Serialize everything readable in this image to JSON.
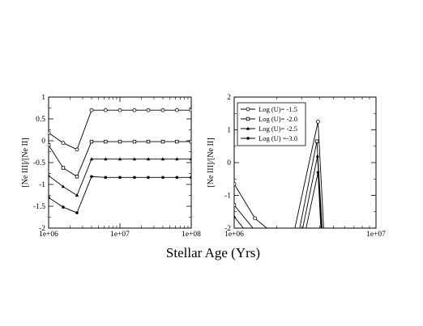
{
  "figure": {
    "xlabel": "Stellar Age (Yrs)"
  },
  "chart_data": [
    {
      "type": "line",
      "ylabel": "[Ne III]/[Ne II]",
      "xscale": "log",
      "xlim": [
        1000000,
        100000000
      ],
      "ylim": [
        -2,
        1
      ],
      "xticks": [
        1000000,
        10000000,
        100000000
      ],
      "xtick_labels": [
        "1e+06",
        "1e+07",
        "1e+08"
      ],
      "yticks": [
        -2,
        -1.5,
        -1,
        -0.5,
        0,
        0.5,
        1
      ],
      "ytick_labels": [
        "-2",
        "-1.5",
        "-1",
        "-0.5",
        "0",
        "0.5",
        "1"
      ],
      "x": [
        1000000,
        1600000,
        2500000,
        4000000,
        6300000,
        10000000,
        16000000,
        25000000,
        40000000,
        63000000,
        100000000
      ],
      "series": [
        {
          "marker": "circle-open",
          "values": [
            0.18,
            -0.05,
            -0.2,
            0.7,
            0.7,
            0.7,
            0.7,
            0.7,
            0.7,
            0.7,
            0.7
          ]
        },
        {
          "marker": "square-open",
          "values": [
            -0.1,
            -0.62,
            -0.82,
            -0.02,
            -0.02,
            -0.02,
            -0.02,
            -0.02,
            -0.02,
            -0.02,
            -0.02
          ]
        },
        {
          "marker": "triangle",
          "values": [
            -0.8,
            -1.05,
            -1.25,
            -0.42,
            -0.42,
            -0.42,
            -0.42,
            -0.42,
            -0.42,
            -0.42,
            -0.42
          ]
        },
        {
          "marker": "circle-filled",
          "values": [
            -1.3,
            -1.52,
            -1.65,
            -0.82,
            -0.84,
            -0.84,
            -0.84,
            -0.84,
            -0.84,
            -0.84,
            -0.84
          ]
        }
      ]
    },
    {
      "type": "line",
      "ylabel": "[Ne III]/[Ne II]",
      "xscale": "log",
      "xlim": [
        1000000,
        10000000
      ],
      "ylim": [
        -2,
        2
      ],
      "xticks": [
        1000000,
        10000000
      ],
      "xtick_labels": [
        "1e+06",
        "1e+07"
      ],
      "yticks": [
        -2,
        -1,
        0,
        1,
        2
      ],
      "ytick_labels": [
        "-2",
        "-1",
        "0",
        "1",
        "2"
      ],
      "legend_position": "top-left",
      "series": [
        {
          "name": "Log (U)= -1.5",
          "marker": "circle-open",
          "points": [
            [
              1000000,
              -0.65
            ],
            [
              1400000,
              -1.7
            ],
            [
              2500000,
              -2.6
            ],
            [
              3900000,
              1.25
            ],
            [
              4350000,
              -2.6
            ]
          ]
        },
        {
          "name": "Log (U)= -2.0",
          "marker": "square-open",
          "points": [
            [
              1000000,
              -1.3
            ],
            [
              2500000,
              -3.4
            ],
            [
              3830000,
              0.65
            ],
            [
              4250000,
              -2.6
            ]
          ]
        },
        {
          "name": "Log (U)= -2.5",
          "marker": "triangle",
          "points": [
            [
              1000000,
              -1.65
            ],
            [
              2500000,
              -3.8
            ],
            [
              3870000,
              0.2
            ],
            [
              4200000,
              -2.6
            ]
          ]
        },
        {
          "name": "Log (U) =-3.0",
          "marker": "circle-filled",
          "points": [
            [
              1000000,
              -2.1
            ],
            [
              2500000,
              -4.2
            ],
            [
              3900000,
              -0.3
            ],
            [
              4150000,
              -2.6
            ]
          ]
        }
      ]
    }
  ]
}
